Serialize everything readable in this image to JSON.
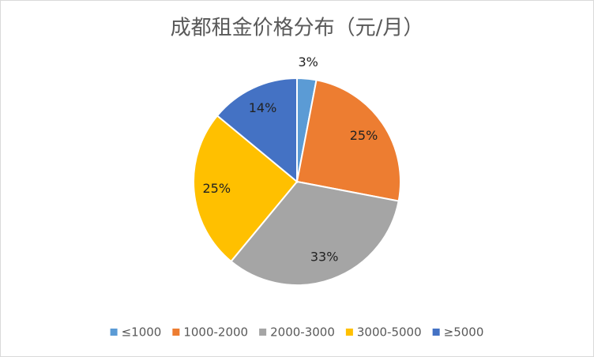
{
  "chart_data": {
    "type": "pie",
    "title": "成都租金价格分布（元/月）",
    "categories": [
      "≤1000",
      "1000-2000",
      "2000-3000",
      "3000-5000",
      "≥5000"
    ],
    "values": [
      3,
      25,
      33,
      25,
      14
    ],
    "value_labels": [
      "3%",
      "25%",
      "33%",
      "25%",
      "14%"
    ],
    "colors": [
      "#5B9BD5",
      "#ED7D31",
      "#A5A5A5",
      "#FFC000",
      "#4472C4"
    ],
    "legend": "bottom"
  }
}
